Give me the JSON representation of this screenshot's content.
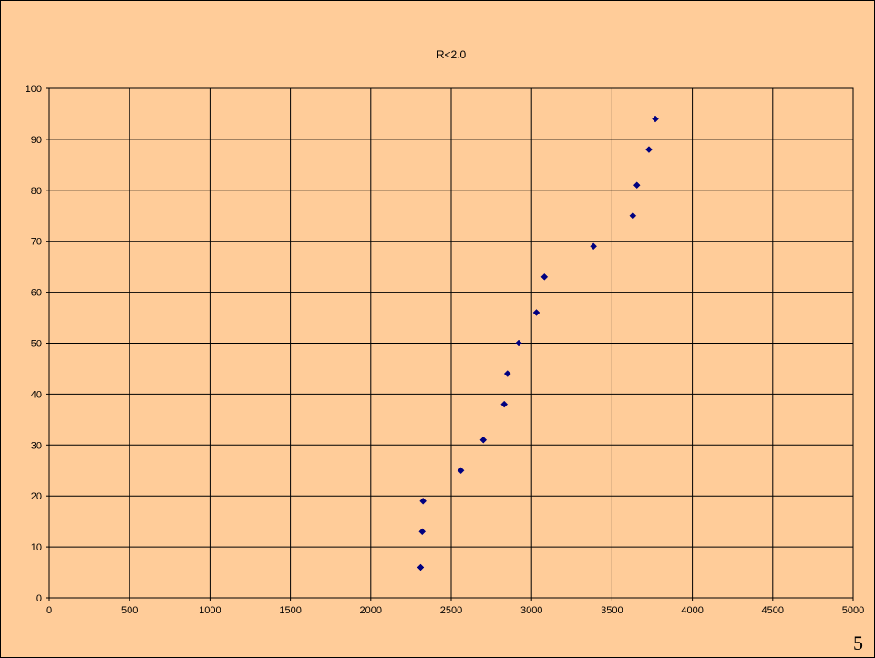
{
  "slide": {
    "page_number": "5",
    "background_color": "#ffcc99"
  },
  "chart_data": {
    "type": "scatter",
    "title": "R<2.0",
    "xlabel": "",
    "ylabel": "",
    "xlim": [
      0,
      5000
    ],
    "ylim": [
      0,
      100
    ],
    "x_ticks": [
      0,
      500,
      1000,
      1500,
      2000,
      2500,
      3000,
      3500,
      4000,
      4500,
      5000
    ],
    "y_ticks": [
      0,
      10,
      20,
      30,
      40,
      50,
      60,
      70,
      80,
      90,
      100
    ],
    "grid": true,
    "legend": "none",
    "marker": "diamond",
    "marker_color": "#000080",
    "series": [
      {
        "points": [
          {
            "x": 2310,
            "y": 6
          },
          {
            "x": 2320,
            "y": 13
          },
          {
            "x": 2325,
            "y": 19
          },
          {
            "x": 2560,
            "y": 25
          },
          {
            "x": 2700,
            "y": 31
          },
          {
            "x": 2830,
            "y": 38
          },
          {
            "x": 2850,
            "y": 44
          },
          {
            "x": 2920,
            "y": 50
          },
          {
            "x": 3030,
            "y": 56
          },
          {
            "x": 3080,
            "y": 63
          },
          {
            "x": 3385,
            "y": 69
          },
          {
            "x": 3630,
            "y": 75
          },
          {
            "x": 3655,
            "y": 81
          },
          {
            "x": 3730,
            "y": 88
          },
          {
            "x": 3770,
            "y": 94
          }
        ]
      }
    ]
  }
}
